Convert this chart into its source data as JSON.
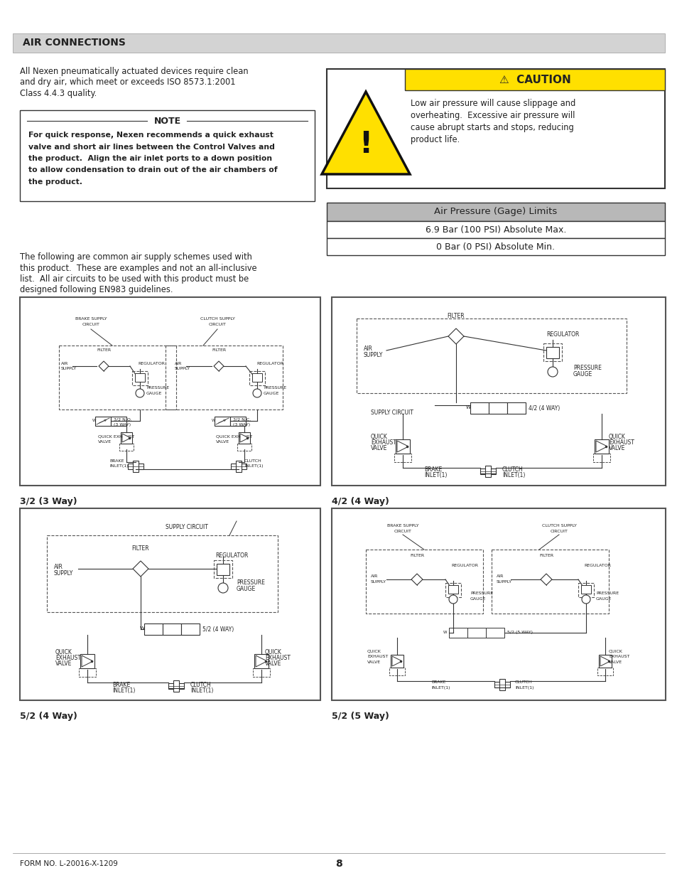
{
  "page_bg": "#ffffff",
  "header_bg": "#d3d3d3",
  "header_text": "AIR CONNECTIONS",
  "header_text_color": "#1a1a1a",
  "body_text_color": "#222222",
  "para1_lines": [
    "All Nexen pneumatically actuated devices require clean",
    "and dry air, which meet or exceeds ISO 8573.1:2001",
    "Class 4.4.3 quality."
  ],
  "note_title": "NOTE",
  "note_lines": [
    "For quick response, Nexen recommends a quick exhaust",
    "valve and short air lines between the Control Valves and",
    "the product.  Align the air inlet ports to a down position",
    "to allow condensation to drain out of the air chambers of",
    "the product."
  ],
  "caution_title": "CAUTION",
  "caution_bg": "#FFE000",
  "caution_lines": [
    "Low air pressure will cause slippage and",
    "overheating.  Excessive air pressure will",
    "cause abrupt starts and stops, reducing",
    "product life."
  ],
  "pressure_header": "Air Pressure (Gage) Limits",
  "pressure_header_bg": "#b8b8b8",
  "pressure_row1": "6.9 Bar (100 PSI) Absolute Max.",
  "pressure_row2": "0 Bar (0 PSI) Absolute Min.",
  "para2_lines": [
    "The following are common air supply schemes used with",
    "this product.  These are examples and not an all-inclusive",
    "list.  All air circuits to be used with this product must be",
    "designed following EN983 guidelines."
  ],
  "diagram1_label": "3/2 (3 Way)",
  "diagram2_label": "4/2 (4 Way)",
  "diagram3_label": "5/2 (4 Way)",
  "diagram4_label": "5/2 (5 Way)",
  "footer_left": "FORM NO. L-20016-X-1209",
  "footer_center": "8",
  "lc": "#333333"
}
